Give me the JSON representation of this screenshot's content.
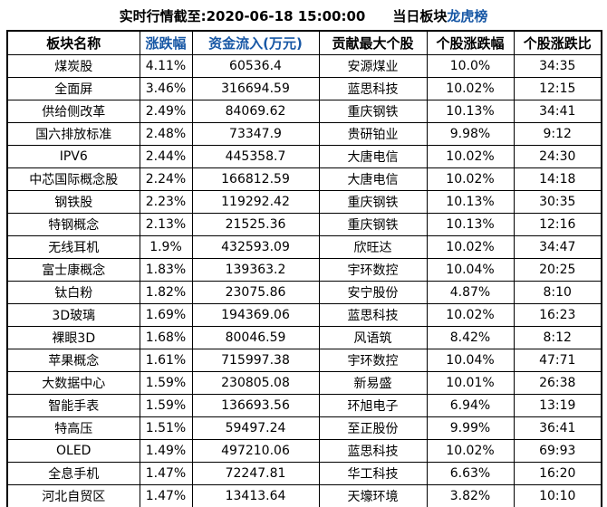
{
  "colors": {
    "link_blue": "#1757a5",
    "border": "#000000",
    "text": "#000000",
    "background": "#ffffff"
  },
  "header": {
    "timestamp_label": "实时行情截至:2020-06-18 15:00:00",
    "board_label": "当日板块",
    "board_link": "龙虎榜"
  },
  "table": {
    "columns": [
      {
        "label": "板块名称",
        "color": "black"
      },
      {
        "label": "涨跌幅",
        "color": "blue"
      },
      {
        "label": "资金流入(万元)",
        "color": "blue"
      },
      {
        "label": "贡献最大个股",
        "color": "black"
      },
      {
        "label": "个股涨跌幅",
        "color": "black"
      },
      {
        "label": "个股涨跌比",
        "color": "black"
      }
    ],
    "rows": [
      {
        "sector": "煤炭股",
        "change": "4.11%",
        "inflow": "60536.4",
        "stock": "安源煤业",
        "stock_change": "10.0%",
        "ratio": "34:35"
      },
      {
        "sector": "全面屏",
        "change": "3.46%",
        "inflow": "316694.59",
        "stock": "蓝思科技",
        "stock_change": "10.02%",
        "ratio": "12:15"
      },
      {
        "sector": "供给侧改革",
        "change": "2.49%",
        "inflow": "84069.62",
        "stock": "重庆钢铁",
        "stock_change": "10.13%",
        "ratio": "34:41"
      },
      {
        "sector": "国六排放标准",
        "change": "2.48%",
        "inflow": "73347.9",
        "stock": "贵研铂业",
        "stock_change": "9.98%",
        "ratio": "9:12"
      },
      {
        "sector": "IPV6",
        "change": "2.44%",
        "inflow": "445358.7",
        "stock": "大唐电信",
        "stock_change": "10.02%",
        "ratio": "24:30"
      },
      {
        "sector": "中芯国际概念股",
        "change": "2.24%",
        "inflow": "166812.59",
        "stock": "大唐电信",
        "stock_change": "10.02%",
        "ratio": "14:18"
      },
      {
        "sector": "钢铁股",
        "change": "2.23%",
        "inflow": "119292.42",
        "stock": "重庆钢铁",
        "stock_change": "10.13%",
        "ratio": "30:35"
      },
      {
        "sector": "特钢概念",
        "change": "2.13%",
        "inflow": "21525.36",
        "stock": "重庆钢铁",
        "stock_change": "10.13%",
        "ratio": "12:16"
      },
      {
        "sector": "无线耳机",
        "change": "1.9%",
        "inflow": "432593.09",
        "stock": "欣旺达",
        "stock_change": "10.02%",
        "ratio": "34:47"
      },
      {
        "sector": "富士康概念",
        "change": "1.83%",
        "inflow": "139363.2",
        "stock": "宇环数控",
        "stock_change": "10.04%",
        "ratio": "20:25"
      },
      {
        "sector": "钛白粉",
        "change": "1.82%",
        "inflow": "23075.86",
        "stock": "安宁股份",
        "stock_change": "4.87%",
        "ratio": "8:10"
      },
      {
        "sector": "3D玻璃",
        "change": "1.69%",
        "inflow": "194369.06",
        "stock": "蓝思科技",
        "stock_change": "10.02%",
        "ratio": "16:23"
      },
      {
        "sector": "裸眼3D",
        "change": "1.68%",
        "inflow": "80046.59",
        "stock": "风语筑",
        "stock_change": "8.42%",
        "ratio": "8:12"
      },
      {
        "sector": "苹果概念",
        "change": "1.61%",
        "inflow": "715997.38",
        "stock": "宇环数控",
        "stock_change": "10.04%",
        "ratio": "47:71"
      },
      {
        "sector": "大数据中心",
        "change": "1.59%",
        "inflow": "230805.08",
        "stock": "新易盛",
        "stock_change": "10.01%",
        "ratio": "26:38"
      },
      {
        "sector": "智能手表",
        "change": "1.59%",
        "inflow": "136693.56",
        "stock": "环旭电子",
        "stock_change": "6.94%",
        "ratio": "13:19"
      },
      {
        "sector": "特高压",
        "change": "1.51%",
        "inflow": "59497.24",
        "stock": "至正股份",
        "stock_change": "9.99%",
        "ratio": "36:41"
      },
      {
        "sector": "OLED",
        "change": "1.49%",
        "inflow": "497210.06",
        "stock": "蓝思科技",
        "stock_change": "10.02%",
        "ratio": "69:93"
      },
      {
        "sector": "全息手机",
        "change": "1.47%",
        "inflow": "72247.81",
        "stock": "华工科技",
        "stock_change": "6.63%",
        "ratio": "16:20"
      },
      {
        "sector": "河北自贸区",
        "change": "1.47%",
        "inflow": "13413.64",
        "stock": "天壕环境",
        "stock_change": "3.82%",
        "ratio": "10:10"
      }
    ]
  }
}
